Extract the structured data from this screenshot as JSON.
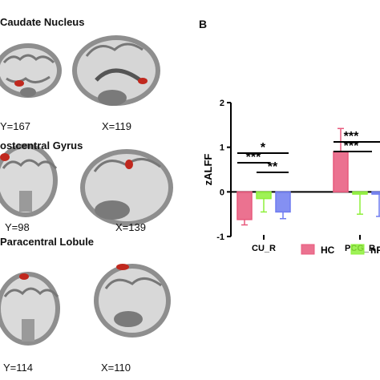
{
  "panel_a": {
    "sections": [
      {
        "title": "Caudate Nucleus",
        "coronal_label": "Y=167",
        "sagittal_label": "X=119"
      },
      {
        "title": "ostcentral Gyrus",
        "coronal_label": "Y=98",
        "sagittal_label": "X=139"
      },
      {
        "title": "Paracentral Lobule",
        "coronal_label": "Y=114",
        "sagittal_label": "X=110"
      }
    ]
  },
  "panel_b_letter": "B",
  "colors": {
    "HC": "#e8597c",
    "nP": "#8ef03a",
    "third": "#6f7cf0",
    "highlight": "#c0281e"
  },
  "chart_data": {
    "type": "bar",
    "ylabel": "zALFF",
    "ylim": [
      -1,
      2
    ],
    "yticks": [
      "-1",
      "0",
      "1",
      "2"
    ],
    "categories": [
      "CU_R",
      "PCG_R"
    ],
    "series": [
      {
        "name": "HC",
        "values": [
          -0.62,
          0.9
        ],
        "errors": [
          0.12,
          0.52
        ]
      },
      {
        "name": "nP",
        "values": [
          -0.15,
          -0.05
        ],
        "errors": [
          0.3,
          0.45
        ]
      },
      {
        "name": "",
        "values": [
          -0.45,
          -0.05
        ],
        "errors": [
          0.15,
          0.5
        ]
      }
    ],
    "significance": [
      "*",
      "***",
      "**",
      "***",
      "***"
    ],
    "legend": [
      "HC",
      "nP"
    ],
    "legend_placement": "bottom",
    "grid": false
  }
}
